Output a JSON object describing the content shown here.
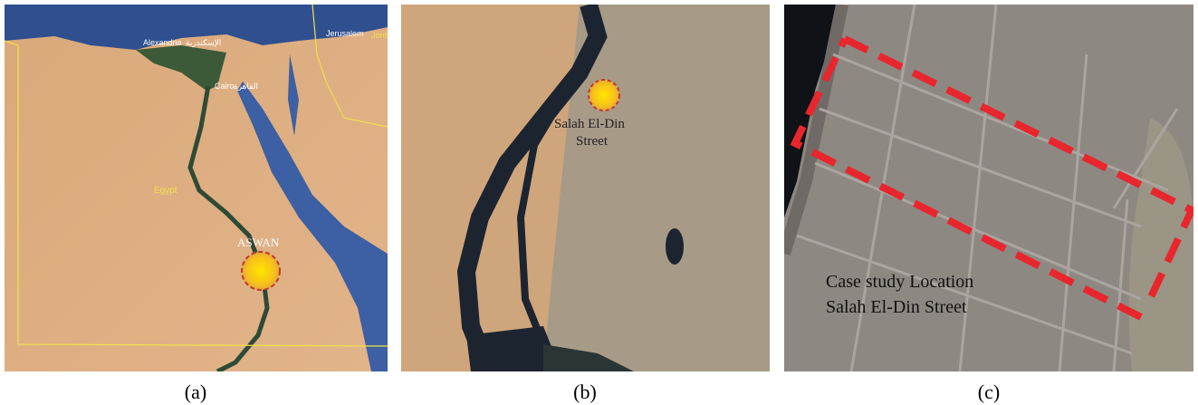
{
  "panels": [
    {
      "caption": "(a)",
      "labels": {
        "alexandria": "Alexandria",
        "alexandria_ar": "الإسكندرية",
        "cairo": "Cairo",
        "cairo_ar": "القاهرة",
        "jerusalem": "Jerusalem",
        "jordan": "Jord",
        "egypt": "Egypt",
        "aswan": "ASWAN"
      }
    },
    {
      "caption": "(b)",
      "labels": {
        "street_line1": "Salah El-Din",
        "street_line2": "Street"
      }
    },
    {
      "caption": "(c)",
      "labels": {
        "line1": "Case study Location",
        "line2": "Salah El-Din Street"
      }
    }
  ]
}
